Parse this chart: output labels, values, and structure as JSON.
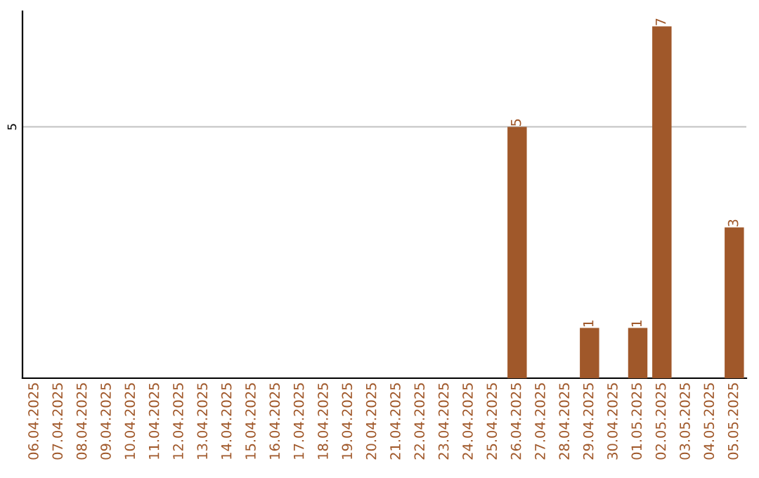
{
  "chart_data": {
    "type": "bar",
    "categories": [
      "06.04.2025",
      "07.04.2025",
      "08.04.2025",
      "09.04.2025",
      "10.04.2025",
      "11.04.2025",
      "12.04.2025",
      "13.04.2025",
      "14.04.2025",
      "15.04.2025",
      "16.04.2025",
      "17.04.2025",
      "18.04.2025",
      "19.04.2025",
      "20.04.2025",
      "21.04.2025",
      "22.04.2025",
      "23.04.2025",
      "24.04.2025",
      "25.04.2025",
      "26.04.2025",
      "27.04.2025",
      "28.04.2025",
      "29.04.2025",
      "30.04.2025",
      "01.05.2025",
      "02.05.2025",
      "03.05.2025",
      "04.05.2025",
      "05.05.2025"
    ],
    "values": [
      null,
      null,
      null,
      null,
      null,
      null,
      null,
      null,
      null,
      null,
      null,
      null,
      null,
      null,
      null,
      null,
      null,
      null,
      null,
      null,
      5,
      null,
      null,
      1,
      null,
      1,
      7,
      null,
      null,
      3
    ],
    "data_labels": true,
    "color": "#a0582a",
    "ylim": [
      0,
      7.3
    ],
    "yticks": [
      {
        "value": 0,
        "label": null
      },
      5
    ],
    "grid": "y"
  }
}
